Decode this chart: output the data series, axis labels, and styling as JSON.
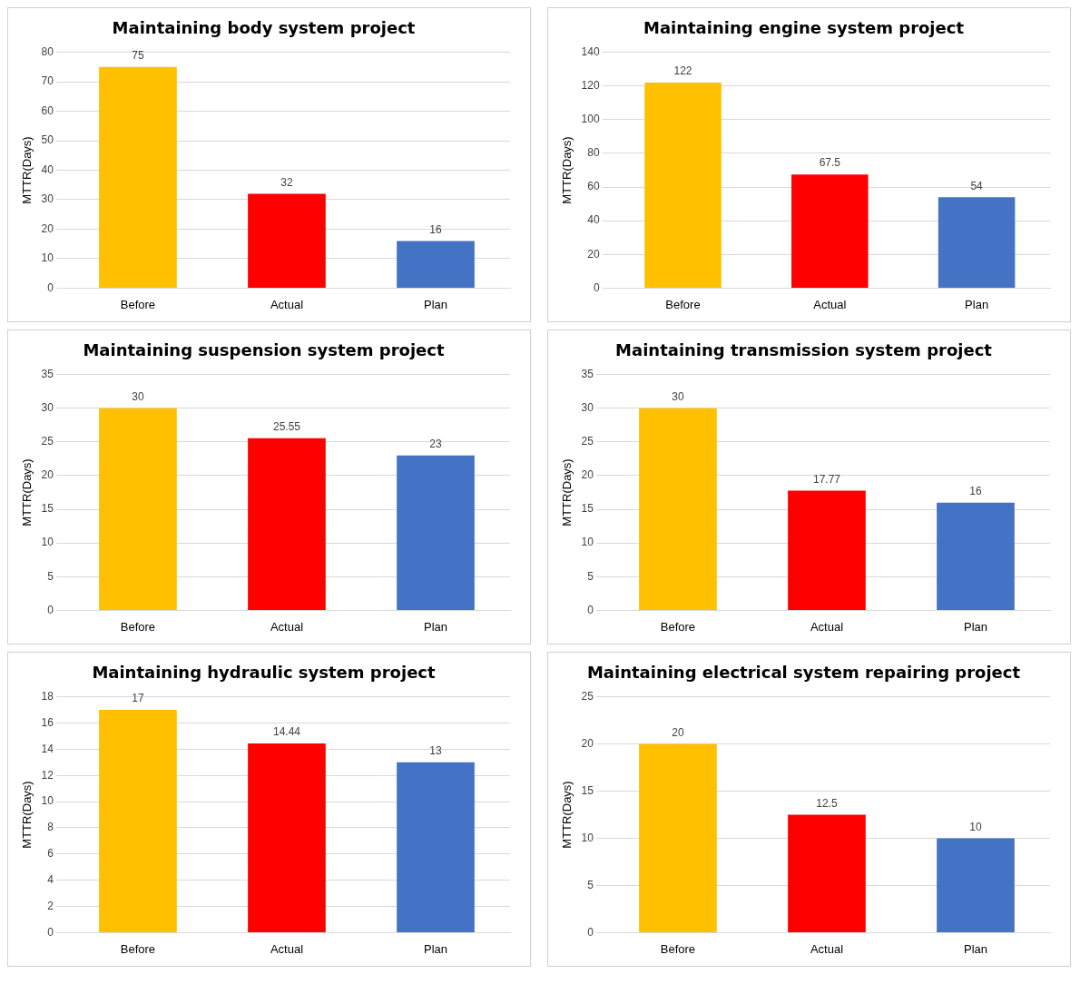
{
  "chart_data": [
    {
      "type": "bar",
      "title": "Maintaining body system project",
      "ylabel": "MTTR(Days)",
      "categories": [
        "Before",
        "Actual",
        "Plan"
      ],
      "values": [
        75,
        32,
        16
      ],
      "colors": [
        "#ffc000",
        "#ff0000",
        "#4472c4"
      ],
      "ylim": [
        0,
        80
      ],
      "yticks": [
        0,
        10,
        20,
        30,
        40,
        50,
        60,
        70,
        80
      ],
      "grid": "y",
      "data_labels": true,
      "legend": false
    },
    {
      "type": "bar",
      "title": "Maintaining engine system project",
      "ylabel": "MTTR(Days)",
      "categories": [
        "Before",
        "Actual",
        "Plan"
      ],
      "values": [
        122,
        67.5,
        54
      ],
      "colors": [
        "#ffc000",
        "#ff0000",
        "#4472c4"
      ],
      "ylim": [
        0,
        140
      ],
      "yticks": [
        0,
        20,
        40,
        60,
        80,
        100,
        120,
        140
      ],
      "grid": "y",
      "data_labels": true,
      "legend": false
    },
    {
      "type": "bar",
      "title": "Maintaining suspension system project",
      "ylabel": "MTTR(Days)",
      "categories": [
        "Before",
        "Actual",
        "Plan"
      ],
      "values": [
        30,
        25.55,
        23
      ],
      "colors": [
        "#ffc000",
        "#ff0000",
        "#4472c4"
      ],
      "ylim": [
        0,
        35
      ],
      "yticks": [
        0,
        5,
        10,
        15,
        20,
        25,
        30,
        35
      ],
      "grid": "y",
      "data_labels": true,
      "legend": false
    },
    {
      "type": "bar",
      "title": "Maintaining transmission system project",
      "ylabel": "MTTR(Days)",
      "categories": [
        "Before",
        "Actual",
        "Plan"
      ],
      "values": [
        30,
        17.77,
        16
      ],
      "colors": [
        "#ffc000",
        "#ff0000",
        "#4472c4"
      ],
      "ylim": [
        0,
        35
      ],
      "yticks": [
        0,
        5,
        10,
        15,
        20,
        25,
        30,
        35
      ],
      "grid": "y",
      "data_labels": true,
      "legend": false
    },
    {
      "type": "bar",
      "title": "Maintaining hydraulic system project",
      "ylabel": "MTTR(Days)",
      "categories": [
        "Before",
        "Actual",
        "Plan"
      ],
      "values": [
        17,
        14.44,
        13
      ],
      "colors": [
        "#ffc000",
        "#ff0000",
        "#4472c4"
      ],
      "ylim": [
        0,
        18
      ],
      "yticks": [
        0,
        2,
        4,
        6,
        8,
        10,
        12,
        14,
        16,
        18
      ],
      "grid": "y",
      "data_labels": true,
      "legend": false
    },
    {
      "type": "bar",
      "title": "Maintaining electrical system repairing project",
      "ylabel": "MTTR(Days)",
      "categories": [
        "Before",
        "Actual",
        "Plan"
      ],
      "values": [
        20,
        12.5,
        10
      ],
      "colors": [
        "#ffc000",
        "#ff0000",
        "#4472c4"
      ],
      "ylim": [
        0,
        25
      ],
      "yticks": [
        0,
        5,
        10,
        15,
        20,
        25
      ],
      "grid": "y",
      "data_labels": true,
      "legend": false
    }
  ]
}
